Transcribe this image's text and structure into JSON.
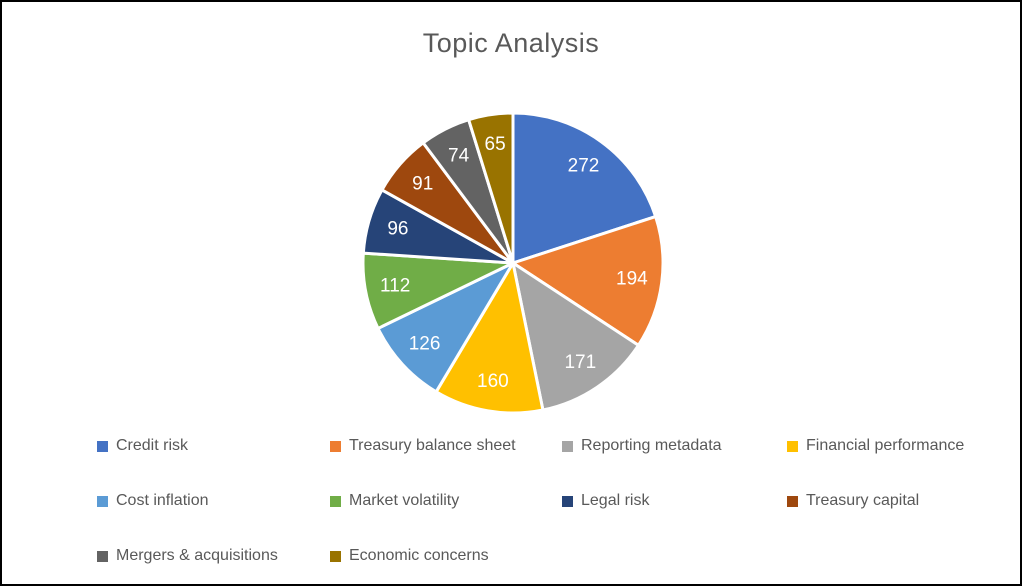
{
  "chart_data": {
    "type": "pie",
    "title": "Topic Analysis",
    "labels": [
      "Credit risk",
      "Treasury balance sheet",
      "Reporting metadata",
      "Financial performance",
      "Cost inflation",
      "Market volatility",
      "Legal risk",
      "Treasury capital",
      "Mergers & acquisitions",
      "Economic concerns"
    ],
    "values": [
      272,
      194,
      171,
      160,
      126,
      112,
      96,
      91,
      74,
      65
    ],
    "total": 1361,
    "colors": [
      "#4472C4",
      "#ED7D31",
      "#A5A5A5",
      "#FFC000",
      "#5B9BD5",
      "#70AD47",
      "#264478",
      "#9E480E",
      "#636363",
      "#997300"
    ],
    "data_label_color": "#FFFFFF",
    "title_color": "#595959",
    "legend_text_color": "#595959",
    "start_angle_deg": 0,
    "direction": "clockwise",
    "legend_position": "bottom",
    "grid": false
  }
}
